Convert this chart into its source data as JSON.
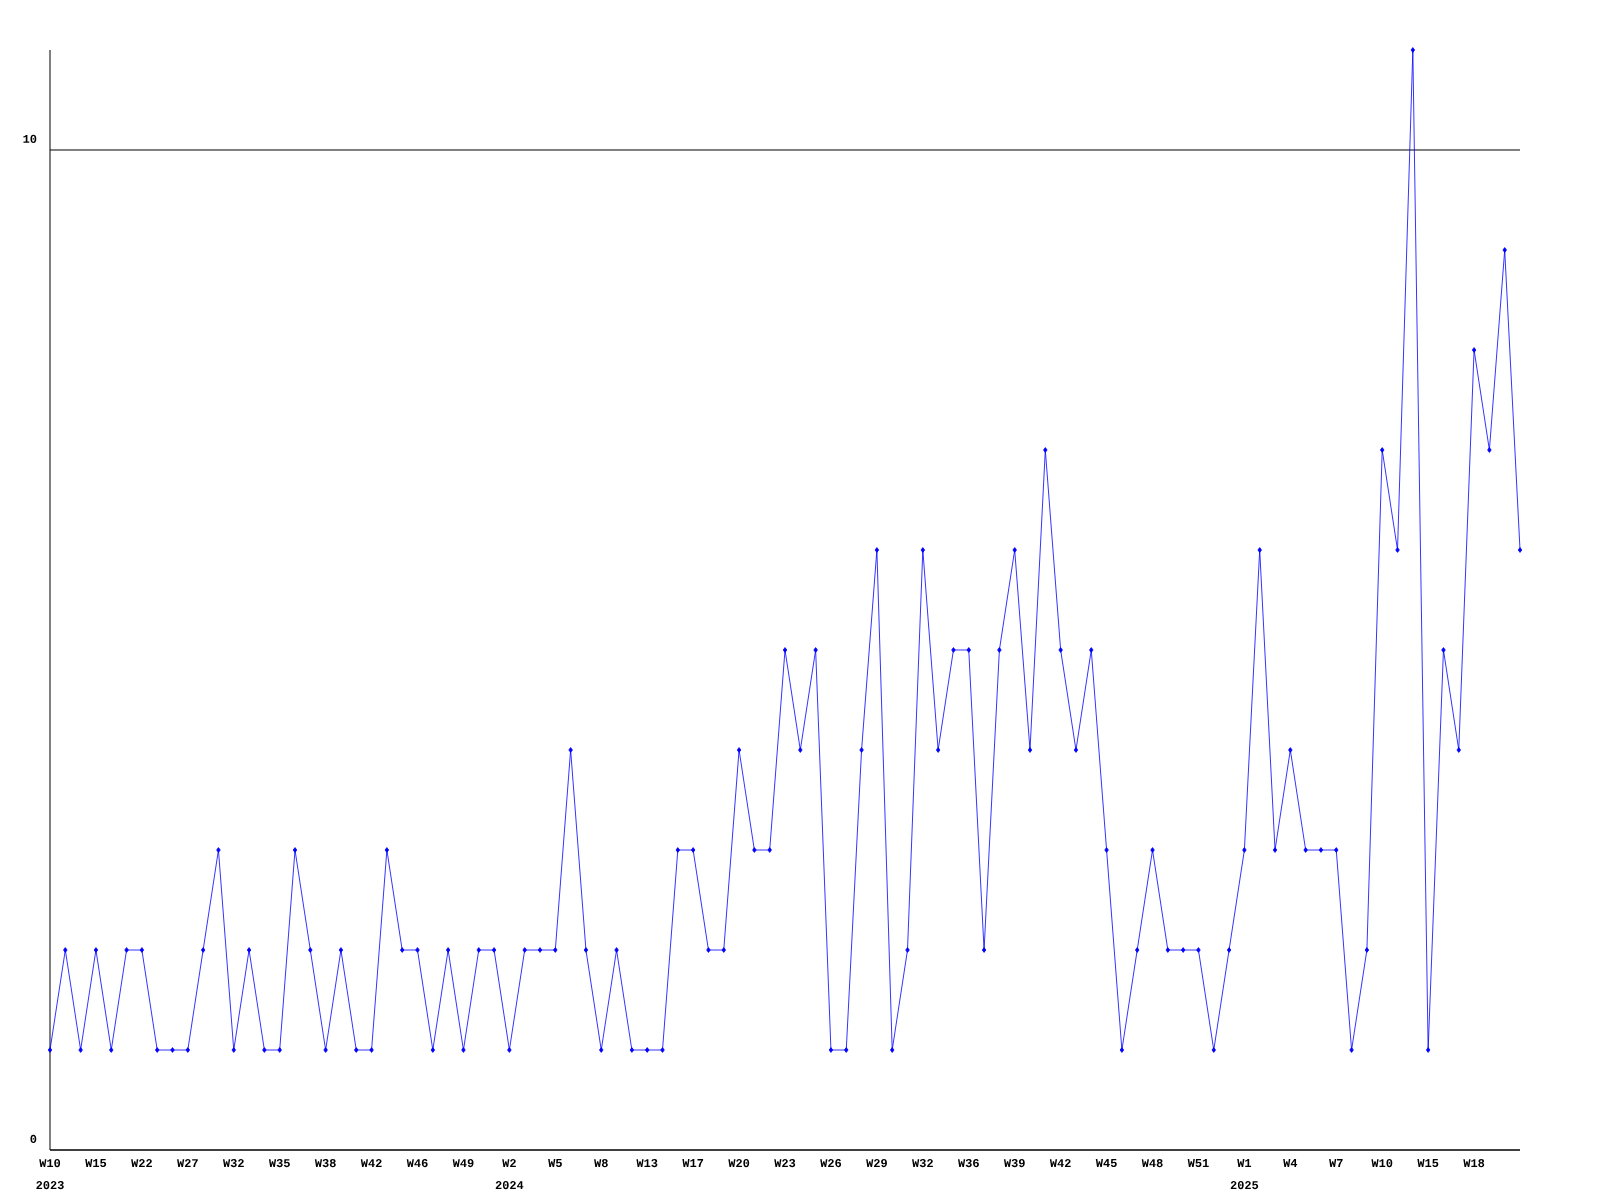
{
  "chart_data": {
    "type": "line",
    "categories": [
      "W10",
      null,
      null,
      "W15",
      null,
      null,
      "W22",
      null,
      null,
      "W27",
      null,
      null,
      "W32",
      null,
      null,
      "W35",
      null,
      null,
      "W38",
      null,
      null,
      "W42",
      null,
      null,
      "W46",
      null,
      null,
      "W49",
      null,
      null,
      "W2",
      null,
      null,
      "W5",
      null,
      null,
      "W8",
      null,
      null,
      "W13",
      null,
      null,
      "W17",
      null,
      null,
      "W20",
      null,
      null,
      "W23",
      null,
      null,
      "W26",
      null,
      null,
      "W29",
      null,
      null,
      "W32",
      null,
      null,
      "W36",
      null,
      null,
      "W39",
      null,
      null,
      "W42",
      null,
      null,
      "W45",
      null,
      null,
      "W48",
      null,
      null,
      "W51",
      null,
      null,
      "W1",
      null,
      null,
      "W4",
      null,
      null,
      "W7",
      null,
      null,
      "W10",
      null,
      null,
      "W15",
      null,
      null,
      "W18",
      null,
      null,
      null
    ],
    "series": [
      {
        "color": "#0000ff",
        "values": [
          1,
          2,
          1,
          2,
          1,
          2,
          2,
          1,
          1,
          1,
          2,
          3,
          1,
          2,
          1,
          1,
          3,
          2,
          1,
          2,
          1,
          1,
          3,
          2,
          2,
          1,
          2,
          1,
          2,
          2,
          1,
          2,
          2,
          2,
          4,
          2,
          1,
          2,
          1,
          1,
          1,
          3,
          3,
          2,
          2,
          4,
          3,
          3,
          5,
          4,
          5,
          1,
          1,
          4,
          6,
          1,
          2,
          6,
          4,
          5,
          5,
          2,
          5,
          6,
          4,
          7,
          5,
          4,
          5,
          3,
          1,
          2,
          3,
          2,
          2,
          2,
          1,
          2,
          3,
          6,
          3,
          4,
          3,
          3,
          3,
          1,
          2,
          7,
          6,
          11,
          1,
          5,
          4,
          8,
          7,
          9,
          6
        ]
      }
    ],
    "ylim": [
      0,
      11
    ],
    "yticks": [
      0,
      10
    ],
    "grid": "y",
    "marker": "diamond",
    "line_style": "solid",
    "annotations": [
      "2023",
      "2024",
      "2025"
    ]
  }
}
